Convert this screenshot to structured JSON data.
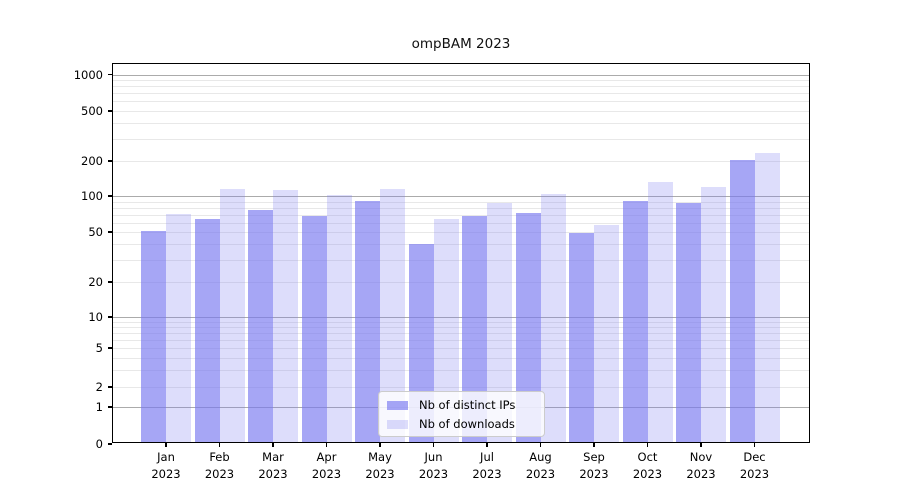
{
  "chart_data": {
    "type": "bar",
    "title": "ompBAM 2023",
    "categories": [
      "Jan",
      "Feb",
      "Mar",
      "Apr",
      "May",
      "Jun",
      "Jul",
      "Aug",
      "Sep",
      "Oct",
      "Nov",
      "Dec"
    ],
    "x_year_label": "2023",
    "series": [
      {
        "name": "Nb of distinct IPs",
        "color": "rgba(118,118,240,0.65)",
        "values": [
          49,
          62,
          73,
          66,
          88,
          39,
          65,
          69,
          47,
          88,
          84,
          198
        ]
      },
      {
        "name": "Nb of downloads",
        "color": "rgba(118,118,240,0.25)",
        "values": [
          68,
          111,
          108,
          99,
          110,
          62,
          84,
          101,
          55,
          127,
          116,
          222
        ]
      }
    ],
    "yscale": "symlog",
    "yticks": [
      0,
      1,
      2,
      5,
      10,
      20,
      50,
      100,
      200,
      500,
      1000
    ],
    "ylim": [
      0,
      1200
    ],
    "xlabel": "",
    "ylabel": "",
    "grid": {
      "enabled": true,
      "major_color": "#ababab",
      "minor_color": "#e8e8e8"
    },
    "legend": {
      "position": "lower center"
    }
  }
}
